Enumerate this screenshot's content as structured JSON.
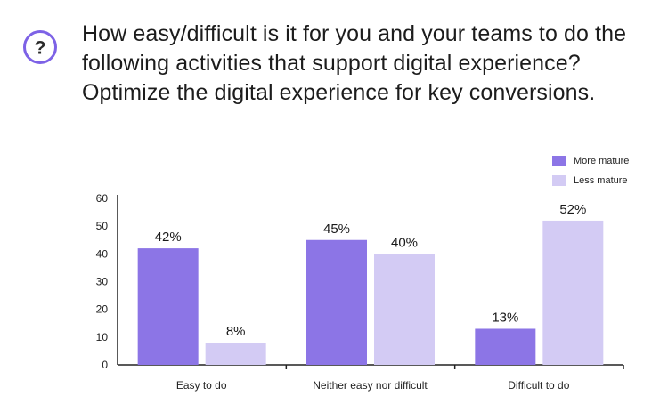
{
  "question": {
    "text": "How easy/difficult is it for you and your teams to do the following activities that support digital experience? Optimize the digital experience for key conversions.",
    "icon": "question-mark-icon",
    "icon_color": "#7d62e6"
  },
  "colors": {
    "more_mature": "#8c75e6",
    "less_mature": "#d3cbf4",
    "axis": "#222222"
  },
  "chart_data": {
    "type": "bar",
    "categories": [
      "Easy to do",
      "Neither easy nor difficult",
      "Difficult to do"
    ],
    "series": [
      {
        "name": "More mature",
        "values": [
          42,
          45,
          13
        ],
        "labels": [
          "42%",
          "45%",
          "13%"
        ]
      },
      {
        "name": "Less mature",
        "values": [
          8,
          40,
          52
        ],
        "labels": [
          "8%",
          "40%",
          "52%"
        ]
      }
    ],
    "ylim": [
      0,
      60
    ],
    "yticks": [
      0,
      10,
      20,
      30,
      40,
      50,
      60
    ],
    "title": "",
    "xlabel": "",
    "ylabel": "",
    "legend_position": "top-right",
    "grid": false
  }
}
